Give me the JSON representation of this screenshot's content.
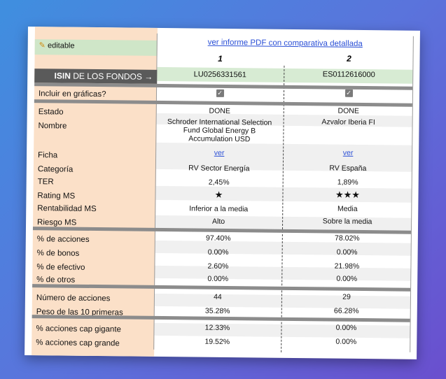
{
  "header": {
    "editable_label": "editable",
    "pdf_link": "ver informe PDF con comparativa detallada",
    "isin_label_bold": "ISIN",
    "isin_label_rest": " DE LOS FONDOS →"
  },
  "funds": [
    {
      "number": "1",
      "isin": "LU0256331561"
    },
    {
      "number": "2",
      "isin": "ES0112616000"
    }
  ],
  "rows": {
    "include": {
      "label": "Incluir en gráficas?",
      "v1": "✓",
      "v2": "✓"
    },
    "estado": {
      "label": "Estado",
      "v1": "DONE",
      "v2": "DONE"
    },
    "nombre": {
      "label": "Nombre",
      "v1": "Schroder International Selection Fund Global Energy B Accumulation USD",
      "v2": "Azvalor Iberia FI"
    },
    "ficha": {
      "label": "Ficha",
      "v1": "ver",
      "v2": "ver"
    },
    "categoria": {
      "label": "Categoría",
      "v1": "RV Sector Energía",
      "v2": "RV España"
    },
    "ter": {
      "label": "TER",
      "v1": "2,45%",
      "v2": "1,89%"
    },
    "rating": {
      "label": "Rating MS",
      "v1": "★",
      "v2": "★★★",
      "v1_stars": 1,
      "v2_stars": 3
    },
    "rentabilidad": {
      "label": "Rentabilidad MS",
      "v1": "Inferior a la media",
      "v2": "Media"
    },
    "riesgo": {
      "label": "Riesgo MS",
      "v1": "Alto",
      "v2": "Sobre la media"
    },
    "acciones": {
      "label": "% de acciones",
      "v1": "97.40%",
      "v2": "78.02%"
    },
    "bonos": {
      "label": "% de bonos",
      "v1": "0.00%",
      "v2": "0.00%"
    },
    "efectivo": {
      "label": "% de efectivo",
      "v1": "2.60%",
      "v2": "21.98%"
    },
    "otros": {
      "label": "% de otros",
      "v1": "0.00%",
      "v2": "0.00%"
    },
    "num_acciones": {
      "label": "Número de acciones",
      "v1": "44",
      "v2": "29"
    },
    "peso10": {
      "label": "Peso de las 10 primeras",
      "v1": "35.28%",
      "v2": "66.28%"
    },
    "cap_gigante": {
      "label": "% acciones cap gigante",
      "v1": "12.33%",
      "v2": "0.00%"
    },
    "cap_grande": {
      "label": "% acciones cap grande",
      "v1": "19.52%",
      "v2": "0.00%"
    }
  }
}
